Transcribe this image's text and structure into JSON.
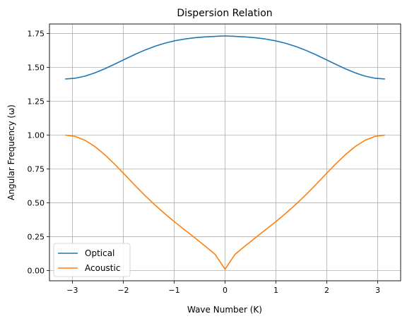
{
  "chart_data": {
    "type": "line",
    "title": "Dispersion Relation",
    "xlabel": "Wave Number (K)",
    "ylabel": "Angular Frequency (ω)",
    "xlim": [
      -3.45,
      3.45
    ],
    "ylim": [
      -0.075,
      1.82
    ],
    "xticks": [
      -3,
      -2,
      -1,
      0,
      1,
      2,
      3
    ],
    "xtick_labels": [
      "−3",
      "−2",
      "−1",
      "0",
      "1",
      "2",
      "3"
    ],
    "yticks": [
      0.0,
      0.25,
      0.5,
      0.75,
      1.0,
      1.25,
      1.5,
      1.75
    ],
    "ytick_labels": [
      "0.00",
      "0.25",
      "0.50",
      "0.75",
      "1.00",
      "1.25",
      "1.50",
      "1.75"
    ],
    "grid": true,
    "legend_position": "lower-left",
    "x": [
      -3.1416,
      -2.9452,
      -2.7489,
      -2.5525,
      -2.3562,
      -2.1598,
      -1.9635,
      -1.7671,
      -1.5708,
      -1.3744,
      -1.1781,
      -0.9817,
      -0.7854,
      -0.589,
      -0.3927,
      -0.1963,
      0.0,
      0.1963,
      0.3927,
      0.589,
      0.7854,
      0.9817,
      1.1781,
      1.3744,
      1.5708,
      1.7671,
      1.9635,
      2.1598,
      2.3562,
      2.5525,
      2.7489,
      2.9452,
      3.1416
    ],
    "series": [
      {
        "name": "Optical",
        "color": "#1f77b4",
        "values": [
          1.4142,
          1.4197,
          1.4355,
          1.46,
          1.4907,
          1.5253,
          1.5611,
          1.5961,
          1.6283,
          1.6562,
          1.6789,
          1.6967,
          1.7095,
          1.7188,
          1.7249,
          1.7283,
          1.7321,
          1.7283,
          1.7249,
          1.7188,
          1.7095,
          1.6967,
          1.6789,
          1.6562,
          1.6283,
          1.5961,
          1.5611,
          1.5253,
          1.4907,
          1.46,
          1.4355,
          1.4197,
          1.4142
        ]
      },
      {
        "name": "Acoustic",
        "color": "#ff7f0e",
        "values": [
          1.0,
          0.9904,
          0.9616,
          0.9143,
          0.8528,
          0.7817,
          0.7055,
          0.6283,
          0.5535,
          0.4834,
          0.4181,
          0.3567,
          0.2984,
          0.2406,
          0.1815,
          0.1205,
          0.01,
          0.1205,
          0.1815,
          0.2406,
          0.2984,
          0.3567,
          0.4181,
          0.4834,
          0.5535,
          0.6283,
          0.7055,
          0.7817,
          0.8528,
          0.9143,
          0.9616,
          0.9904,
          1.0
        ]
      }
    ]
  }
}
